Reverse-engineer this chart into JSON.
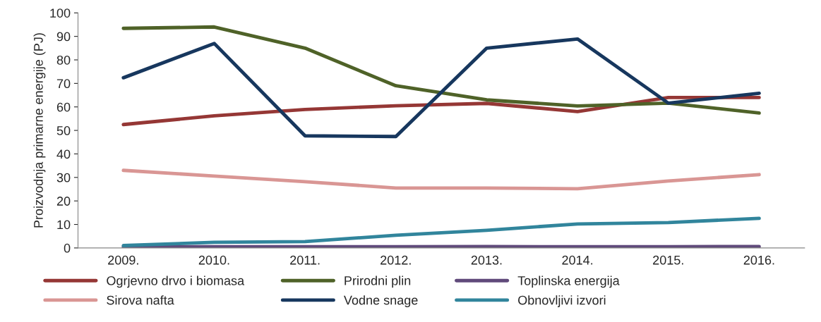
{
  "chart_data": {
    "type": "line",
    "ylabel": "Proizvodnja primarne energije (PJ)",
    "categories": [
      "2009.",
      "2010.",
      "2011.",
      "2012.",
      "2013.",
      "2014.",
      "2015.",
      "2016."
    ],
    "series": [
      {
        "name": "Ogrjevno drvo i biomasa",
        "color": "#953735",
        "values": [
          52.5,
          56.2,
          58.9,
          60.5,
          61.5,
          58,
          64,
          64
        ]
      },
      {
        "name": "Sirova nafta",
        "color": "#d99694",
        "values": [
          33,
          30.6,
          28.2,
          25.5,
          25.5,
          25.2,
          28.5,
          31.2
        ]
      },
      {
        "name": "Prirodni plin",
        "color": "#4f6228",
        "values": [
          93.4,
          94,
          85,
          69,
          63,
          60.4,
          61.6,
          57.4
        ]
      },
      {
        "name": "Vodne snage",
        "color": "#17375e",
        "values": [
          72.4,
          87,
          47.7,
          47.4,
          85,
          88.9,
          61.6,
          65.8
        ]
      },
      {
        "name": "Toplinska energija",
        "color": "#604a7b",
        "values": [
          0.5,
          0.5,
          0.5,
          0.5,
          0.6,
          0.5,
          0.5,
          0.6
        ]
      },
      {
        "name": "Obnovljivi izvori",
        "color": "#31859c",
        "values": [
          1,
          2.4,
          2.7,
          5.4,
          7.5,
          10.2,
          10.8,
          12.6
        ]
      }
    ],
    "ylim": [
      0,
      100
    ],
    "yticks": [
      0,
      10,
      20,
      30,
      40,
      50,
      60,
      70,
      80,
      90,
      100
    ],
    "grid": false,
    "legend": "bottom",
    "marker": "none",
    "line_style": "solid"
  }
}
